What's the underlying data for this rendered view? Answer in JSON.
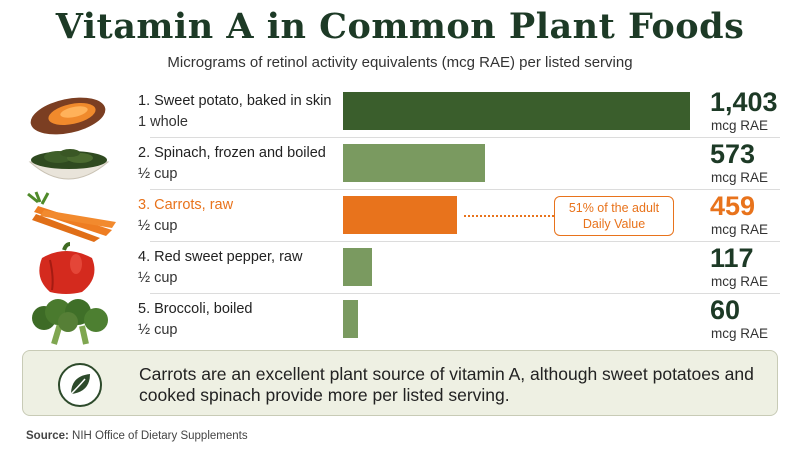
{
  "title": "Vitamin A in Common Plant Foods",
  "subtitle": "Micrograms of retinol activity equivalents (mcg RAE) per listed serving",
  "chart_data": {
    "type": "bar",
    "orientation": "horizontal",
    "unit": "mcg RAE",
    "categories": [
      "1. Sweet potato, baked in skin",
      "2. Spinach, frozen and boiled",
      "3. Carrots, raw",
      "4. Red sweet pepper, raw",
      "5. Broccoli, boiled"
    ],
    "values": [
      1403,
      573,
      459,
      117,
      60
    ],
    "highlighted_index": 2,
    "xlim": [
      0,
      1403
    ]
  },
  "items": [
    {
      "name": "1. Sweet potato, baked in skin",
      "serving": "1 whole",
      "value_label": "1,403",
      "unit": "mcg RAE",
      "color": "#3a5e2c",
      "text_color": "#222222",
      "icon": "sweet-potato-icon"
    },
    {
      "name": "2. Spinach, frozen and boiled",
      "serving": "½ cup",
      "value_label": "573",
      "unit": "mcg RAE",
      "color": "#7a9a60",
      "text_color": "#222222",
      "icon": "spinach-bowl-icon"
    },
    {
      "name": "3. Carrots, raw",
      "serving": "½ cup",
      "value_label": "459",
      "unit": "mcg RAE",
      "color": "#e8731c",
      "text_color": "#e8731c",
      "icon": "carrots-icon"
    },
    {
      "name": "4. Red sweet pepper, raw",
      "serving": "½ cup",
      "value_label": "117",
      "unit": "mcg RAE",
      "color": "#7a9a60",
      "text_color": "#222222",
      "icon": "red-pepper-icon"
    },
    {
      "name": "5. Broccoli, boiled",
      "serving": "½ cup",
      "value_label": "60",
      "unit": "mcg RAE",
      "color": "#7a9a60",
      "text_color": "#222222",
      "icon": "broccoli-icon"
    }
  ],
  "callout": {
    "line1": "51% of the adult",
    "line2": "Daily Value"
  },
  "note": {
    "text": "Carrots are an excellent plant source of vitamin A, although sweet potatoes and cooked spinach provide more per listed serving.",
    "icon": "leaf-icon"
  },
  "source": {
    "label": "Source:",
    "text": "NIH Office of Dietary Supplements"
  },
  "colors": {
    "dark_green": "#1d3a26",
    "highlight_orange": "#e8731c",
    "note_bg": "#eef0e3"
  }
}
